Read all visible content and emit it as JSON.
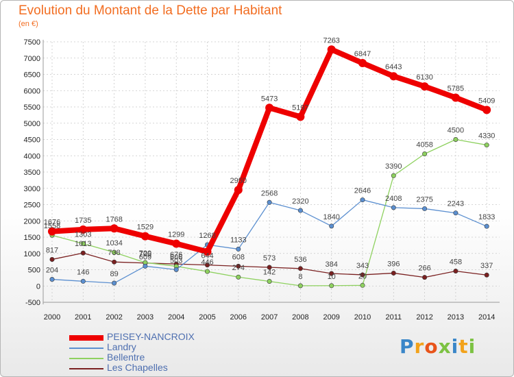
{
  "header": {
    "title": "Evolution du Montant de la Dette par Habitant",
    "subtitle": "(en €)"
  },
  "logo": {
    "text": "Proxiti"
  },
  "colors": {
    "title": "#f26d21",
    "grid": "#c8c8c8",
    "legend_text": "#4e6fb0"
  },
  "chart_data": {
    "type": "line",
    "title": "Evolution du Montant de la Dette par Habitant",
    "subtitle": "(en €)",
    "x": [
      "2000",
      "2001",
      "2002",
      "2003",
      "2004",
      "2005",
      "2006",
      "2007",
      "2008",
      "2009",
      "2010",
      "2011",
      "2012",
      "2013",
      "2014"
    ],
    "ylim": [
      -500,
      7500
    ],
    "yticks": [
      -500,
      0,
      500,
      1000,
      1500,
      2000,
      2500,
      3000,
      3500,
      4000,
      4500,
      5000,
      5500,
      6000,
      6500,
      7000,
      7500
    ],
    "grid": true,
    "legend_position": "bottom-left",
    "series": [
      {
        "name": "PEISEY-NANCROIX",
        "color": "#ee0000",
        "width": 8,
        "marker": 6,
        "values": [
          1676,
          1735,
          1768,
          1529,
          1299,
          1053,
          2950,
          5473,
          5197,
          7263,
          6847,
          6443,
          6130,
          5785,
          5409
        ],
        "labels": [
          "1676",
          "1735",
          "1768",
          "1529",
          "1299",
          "",
          "2950",
          "5473",
          "5197",
          "7263",
          "6847",
          "6443",
          "6130",
          "5785",
          "5409"
        ]
      },
      {
        "name": "Landry",
        "color": "#5b8fd0",
        "width": 1.3,
        "marker": 3.2,
        "values": [
          204,
          146,
          89,
          609,
          503,
          1268,
          1133,
          2568,
          2320,
          1840,
          2646,
          2408,
          2375,
          2243,
          1833
        ],
        "labels": [
          "204",
          "146",
          "89",
          "609",
          "503",
          "1268",
          "1133",
          "2568",
          "2320",
          "1840",
          "2646",
          "2408",
          "2375",
          "2243",
          "1833"
        ]
      },
      {
        "name": "Bellentre",
        "color": "#8ed15f",
        "width": 1.3,
        "marker": 3.2,
        "values": [
          1558,
          1303,
          1034,
          720,
          606,
          446,
          274,
          142,
          8,
          10,
          20,
          3390,
          4058,
          4500,
          4330
        ],
        "labels": [
          "1558",
          "1303",
          "1034",
          "720",
          "606",
          "446",
          "274",
          "142",
          "8",
          "10",
          "20",
          "3390",
          "4058",
          "4500",
          "4330"
        ]
      },
      {
        "name": "Les Chapelles",
        "color": "#7a2020",
        "width": 1.3,
        "marker": 3.2,
        "values": [
          817,
          1013,
          738,
          705,
          676,
          644,
          608,
          573,
          536,
          384,
          343,
          396,
          266,
          458,
          337
        ],
        "labels": [
          "817",
          "1013",
          "738",
          "705",
          "676",
          "644",
          "608",
          "573",
          "536",
          "384",
          "343",
          "396",
          "266",
          "458",
          "337"
        ]
      }
    ]
  }
}
